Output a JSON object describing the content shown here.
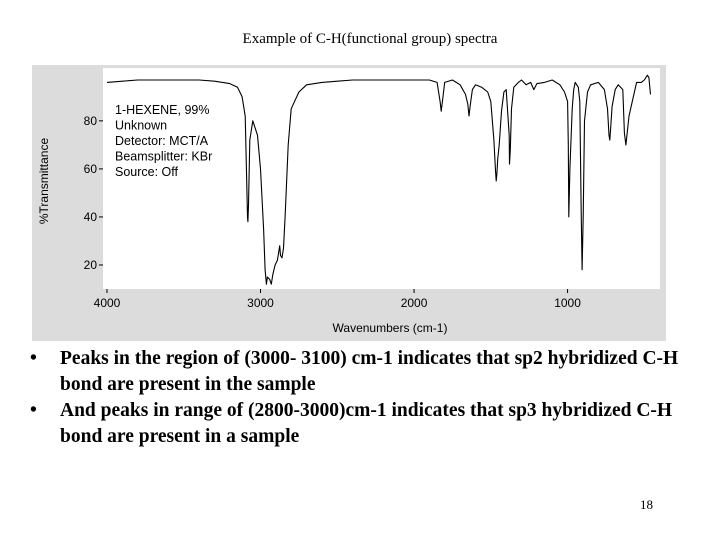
{
  "slide": {
    "title": "Example of C-H(functional group) spectra",
    "bullets": [
      "Peaks in the region of (3000- 3100) cm-1 indicates that sp2 hybridized C-H bond are present in the sample",
      "And peaks in range of (2800-3000)cm-1 indicates that sp3 hybridized C-H bond are present in a sample"
    ],
    "page_number": "18"
  },
  "chart_data": {
    "type": "line",
    "title": "",
    "xlabel": "Wavenumbers (cm-1)",
    "ylabel": "%Transmittance",
    "xlim": [
      4000,
      450
    ],
    "ylim": [
      10,
      102
    ],
    "x_ticks": [
      4000,
      3000,
      2000,
      1000
    ],
    "y_ticks": [
      20,
      40,
      60,
      80
    ],
    "grid": false,
    "line_color": "#000000",
    "annotation": [
      "1-HEXENE, 99%",
      "Unknown",
      "Detector:  MCT/A",
      "Beamsplitter:  KBr",
      "Source:  Off"
    ],
    "series": [
      {
        "x": [
          4000,
          3900,
          3800,
          3700,
          3600,
          3500,
          3400,
          3300,
          3200,
          3150,
          3120,
          3100,
          3090,
          3085,
          3082,
          3078,
          3070,
          3050,
          3020,
          3000,
          2980,
          2970,
          2962,
          2955,
          2940,
          2930,
          2920,
          2905,
          2890,
          2875,
          2870,
          2860,
          2850,
          2840,
          2820,
          2800,
          2750,
          2700,
          2600,
          2500,
          2400,
          2300,
          2200,
          2100,
          2000,
          1900,
          1850,
          1830,
          1823,
          1815,
          1800,
          1750,
          1700,
          1665,
          1650,
          1642,
          1635,
          1620,
          1600,
          1560,
          1520,
          1500,
          1480,
          1470,
          1465,
          1460,
          1455,
          1445,
          1430,
          1415,
          1400,
          1380,
          1378,
          1373,
          1365,
          1350,
          1320,
          1300,
          1270,
          1240,
          1220,
          1200,
          1150,
          1100,
          1050,
          1020,
          1000,
          995,
          992,
          985,
          970,
          960,
          950,
          930,
          920,
          912,
          905,
          898,
          890,
          870,
          850,
          800,
          760,
          740,
          730,
          725,
          720,
          710,
          690,
          670,
          640,
          630,
          620,
          600,
          550,
          520,
          500,
          480,
          470,
          460
        ],
        "y": [
          96,
          96.5,
          97,
          97,
          97,
          97,
          97,
          96.5,
          95.5,
          94,
          90,
          82,
          55,
          40,
          38,
          45,
          72,
          80,
          74,
          60,
          35,
          18,
          12,
          15,
          14,
          12,
          16,
          20,
          22,
          28,
          24,
          23,
          27,
          40,
          70,
          85,
          92,
          95,
          96,
          96.5,
          97,
          97,
          97,
          97,
          97,
          97,
          96,
          88,
          84,
          88,
          96,
          97,
          95,
          91,
          87,
          82,
          86,
          93,
          95,
          94,
          92,
          88,
          72,
          60,
          55,
          58,
          64,
          70,
          84,
          92,
          93,
          74,
          62,
          68,
          85,
          94,
          96,
          97,
          95,
          96,
          93,
          95.5,
          96,
          97,
          95,
          92,
          88,
          70,
          40,
          60,
          85,
          93,
          96,
          94,
          88,
          45,
          18,
          40,
          80,
          92,
          95,
          96,
          93,
          85,
          74,
          72,
          76,
          86,
          93,
          95,
          93,
          75,
          70,
          82,
          96,
          96,
          97,
          99,
          98,
          91
        ]
      }
    ]
  }
}
